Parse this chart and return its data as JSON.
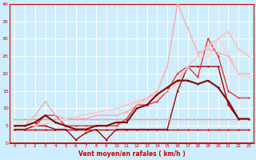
{
  "xlabel": "Vent moyen/en rafales ( km/h )",
  "xlim": [
    -0.5,
    23.5
  ],
  "ylim": [
    0,
    40
  ],
  "yticks": [
    0,
    5,
    10,
    15,
    20,
    25,
    30,
    35,
    40
  ],
  "xticks": [
    0,
    1,
    2,
    3,
    4,
    5,
    6,
    7,
    8,
    9,
    10,
    11,
    12,
    13,
    14,
    15,
    16,
    17,
    18,
    19,
    20,
    21,
    22,
    23
  ],
  "bg_color": "#cceeff",
  "grid_color": "#ffffff",
  "series": [
    {
      "x": [
        0,
        1,
        2,
        3,
        4,
        5,
        6,
        7,
        8,
        9,
        10,
        11,
        12,
        13,
        14,
        15,
        16,
        17,
        18,
        19,
        20,
        21,
        22,
        23
      ],
      "y": [
        4,
        4,
        4,
        4,
        4,
        4,
        4,
        4,
        4,
        4,
        4,
        4,
        4,
        4,
        4,
        4,
        4,
        4,
        4,
        4,
        4,
        4,
        4,
        4
      ],
      "color": "#cc0000",
      "lw": 1.0,
      "marker": "D",
      "ms": 1.5
    },
    {
      "x": [
        0,
        1,
        2,
        3,
        4,
        5,
        6,
        7,
        8,
        9,
        10,
        11,
        12,
        13,
        14,
        15,
        16,
        17,
        18,
        19,
        20,
        21,
        22,
        23
      ],
      "y": [
        4,
        4,
        5,
        5,
        4,
        4,
        1,
        3,
        4,
        1,
        4,
        4,
        4,
        4,
        4,
        4,
        15,
        22,
        22,
        22,
        22,
        11,
        7,
        7
      ],
      "color": "#aa0000",
      "lw": 1.0,
      "marker": "D",
      "ms": 1.5
    },
    {
      "x": [
        0,
        1,
        2,
        3,
        4,
        5,
        6,
        7,
        8,
        9,
        10,
        11,
        12,
        13,
        14,
        15,
        16,
        17,
        18,
        19,
        20,
        21,
        22,
        23
      ],
      "y": [
        7,
        7,
        7,
        7,
        7,
        7,
        7,
        7,
        7,
        7,
        7,
        7,
        7,
        7,
        7,
        7,
        7,
        7,
        7,
        7,
        7,
        7,
        7,
        7
      ],
      "color": "#ff9999",
      "lw": 1.0,
      "marker": "D",
      "ms": 1.5
    },
    {
      "x": [
        0,
        1,
        2,
        3,
        4,
        5,
        6,
        7,
        8,
        9,
        10,
        11,
        12,
        13,
        14,
        15,
        16,
        17,
        18,
        19,
        20,
        21,
        22,
        23
      ],
      "y": [
        5,
        5,
        5,
        8,
        8,
        5,
        5,
        5,
        5,
        5,
        5,
        7,
        11,
        11,
        12,
        15,
        20,
        22,
        19,
        30,
        25,
        15,
        13,
        13
      ],
      "color": "#ee3333",
      "lw": 1.0,
      "marker": "D",
      "ms": 1.5
    },
    {
      "x": [
        0,
        1,
        2,
        3,
        4,
        5,
        6,
        7,
        8,
        9,
        10,
        11,
        12,
        13,
        14,
        15,
        16,
        17,
        18,
        19,
        20,
        21,
        22,
        23
      ],
      "y": [
        5,
        5,
        8,
        12,
        8,
        7,
        7,
        7,
        8,
        8,
        8,
        9,
        11,
        13,
        15,
        22,
        40,
        33,
        26,
        27,
        26,
        25,
        20,
        20
      ],
      "color": "#ffaaaa",
      "lw": 1.0,
      "marker": "D",
      "ms": 1.5
    },
    {
      "x": [
        0,
        2,
        5,
        10,
        14,
        16,
        17,
        18,
        19,
        20,
        21,
        22,
        23
      ],
      "y": [
        5,
        5,
        7,
        10,
        14,
        18,
        22,
        25,
        28,
        30,
        32,
        27,
        25
      ],
      "color": "#ffbbbb",
      "lw": 1.0,
      "marker": "D",
      "ms": 1.5
    },
    {
      "x": [
        0,
        2,
        5,
        10,
        14,
        16,
        17,
        18,
        19,
        20,
        21,
        22,
        23
      ],
      "y": [
        5,
        5,
        7,
        10,
        13,
        17,
        22,
        25,
        25,
        30,
        26,
        20,
        19
      ],
      "color": "#ffcccc",
      "lw": 1.0,
      "marker": "D",
      "ms": 1.5
    },
    {
      "x": [
        0,
        1,
        2,
        3,
        4,
        5,
        6,
        7,
        8,
        9,
        10,
        11,
        12,
        13,
        14,
        15,
        16,
        17,
        18,
        19,
        20,
        21,
        22,
        23
      ],
      "y": [
        5,
        5,
        6,
        8,
        6,
        5,
        4,
        4,
        5,
        5,
        6,
        6,
        10,
        11,
        14,
        16,
        18,
        18,
        17,
        18,
        16,
        12,
        7,
        7
      ],
      "color": "#880000",
      "lw": 1.5,
      "marker": "D",
      "ms": 1.5
    }
  ]
}
